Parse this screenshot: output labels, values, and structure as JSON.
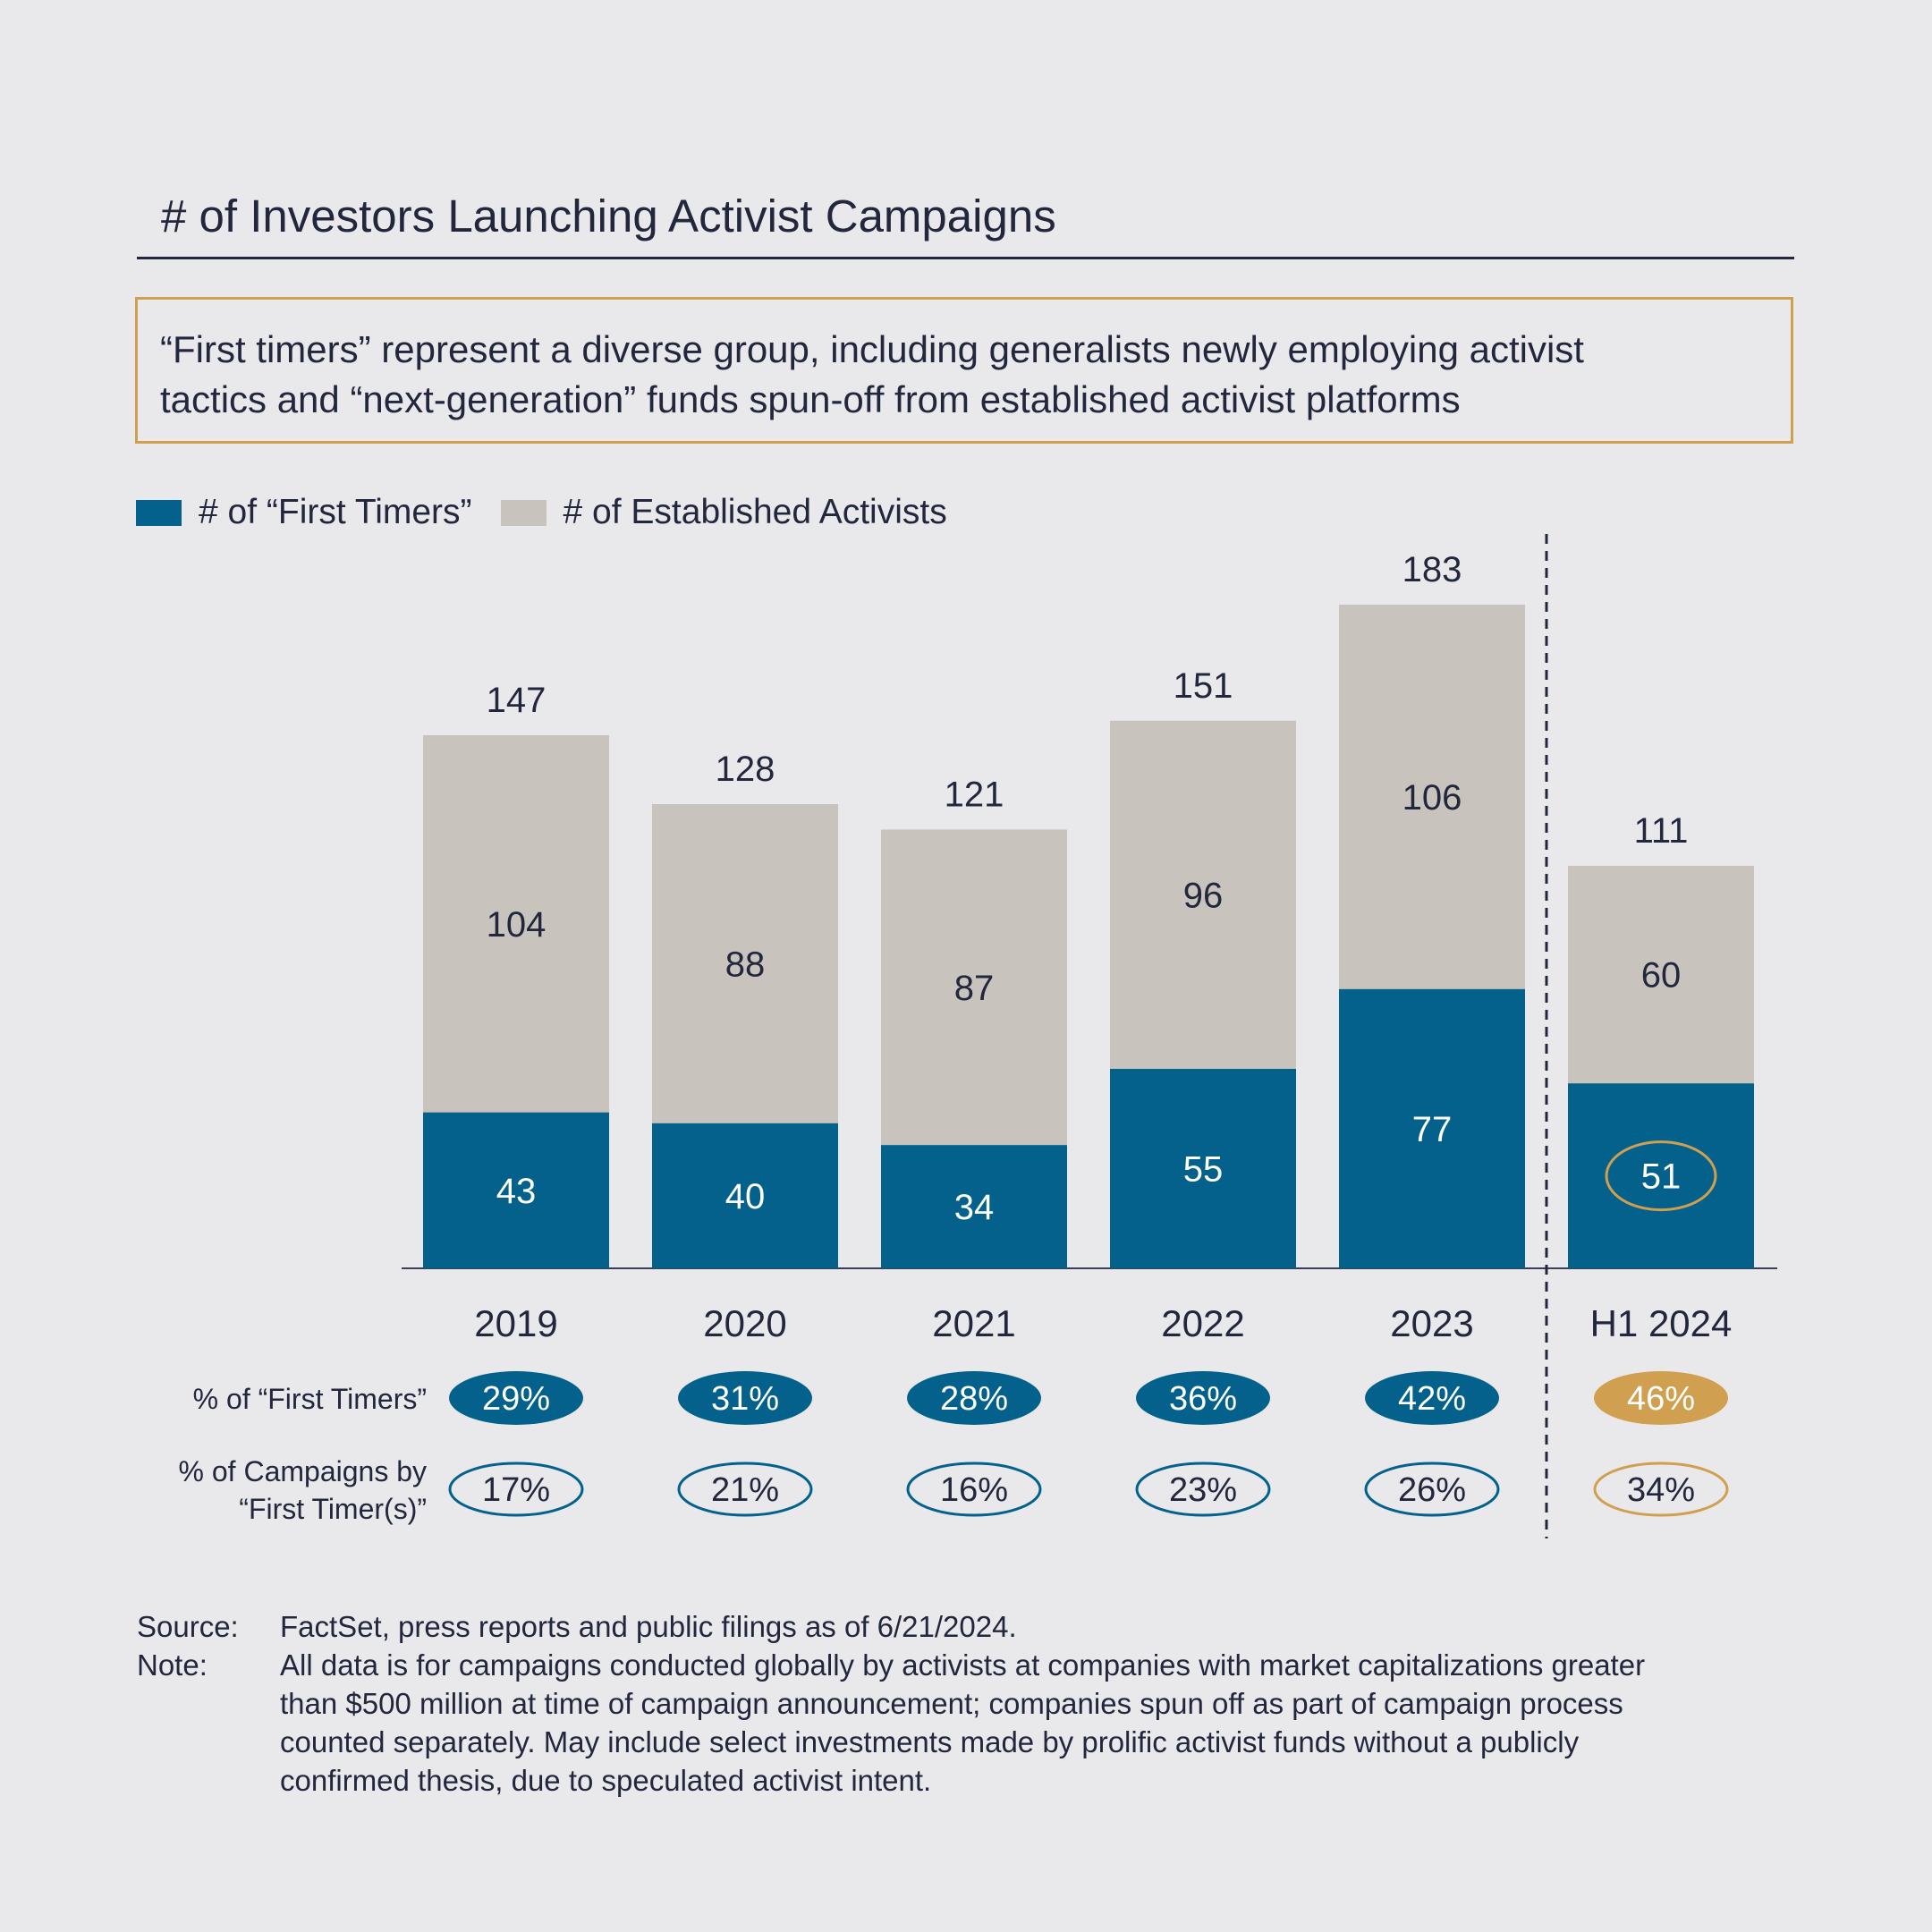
{
  "title": "# of Investors Launching Activist Campaigns",
  "callout": {
    "lines": [
      "“First timers” represent a diverse group, including generalists newly employing activist",
      "tactics and “next-generation” funds spun-off from established activist platforms"
    ]
  },
  "legend": [
    {
      "label": "# of “First Timers”",
      "color": "#03618c"
    },
    {
      "label": "# of Established Activists",
      "color": "#c8c4bd"
    }
  ],
  "colors": {
    "first_timers": "#03618c",
    "established": "#c8c4bd",
    "highlight": "#d0a050",
    "text": "#22273d",
    "background": "#e9e9eb"
  },
  "chart_data": {
    "type": "bar",
    "stacked": true,
    "title": "# of Investors Launching Activist Campaigns",
    "xlabel": "",
    "ylabel": "",
    "ylim": [
      0,
      183
    ],
    "grid": false,
    "legend_position": "top-left",
    "categories": [
      "2019",
      "2020",
      "2021",
      "2022",
      "2023",
      "H1 2024"
    ],
    "series": [
      {
        "name": "# of “First Timers”",
        "values": [
          43,
          40,
          34,
          55,
          77,
          51
        ]
      },
      {
        "name": "# of Established Activists",
        "values": [
          104,
          88,
          87,
          96,
          106,
          60
        ]
      }
    ],
    "totals": [
      147,
      128,
      121,
      151,
      183,
      111
    ],
    "highlighted_category": "H1 2024",
    "annotations": [
      {
        "category": "H1 2024",
        "text": "51",
        "type": "circled-value"
      },
      {
        "type": "divider",
        "between": [
          "2023",
          "H1 2024"
        ],
        "style": "dashed"
      }
    ],
    "rows": [
      {
        "label": "% of “First Timers”",
        "style": "filled",
        "values": [
          "29%",
          "31%",
          "28%",
          "36%",
          "42%",
          "46%"
        ]
      },
      {
        "label_lines": [
          "% of Campaigns by",
          "“First Timer(s)”"
        ],
        "style": "outline",
        "values": [
          "17%",
          "21%",
          "16%",
          "23%",
          "26%",
          "34%"
        ]
      }
    ]
  },
  "footer": {
    "source_label": "Source:",
    "source_text": "FactSet, press reports and public filings as of 6/21/2024.",
    "note_label": "Note:",
    "note_lines": [
      "All data is for campaigns conducted globally by activists at companies with market capitalizations greater",
      "than $500 million at time of campaign announcement; companies spun off as part of campaign process",
      "counted separately. May include select investments made by prolific activist funds without a publicly",
      "confirmed thesis, due to speculated activist intent."
    ]
  }
}
